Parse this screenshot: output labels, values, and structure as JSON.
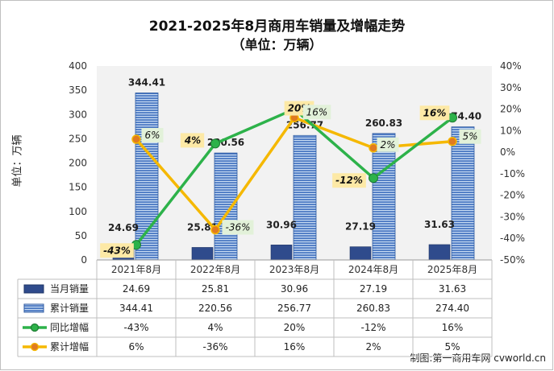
{
  "title": "2021-2025年8月商用车销量及增幅走势",
  "subtitle": "（单位：万辆）",
  "source": "制图:第一商用车网 cvworld.cn",
  "chart_data": {
    "type": "bar",
    "categories": [
      "2021年8月",
      "2022年8月",
      "2023年8月",
      "2024年8月",
      "2025年8月"
    ],
    "ylabel": "单位：万辆",
    "ylim": [
      0,
      400
    ],
    "y2lim": [
      -50,
      40
    ],
    "yticks": [
      "0",
      "50",
      "100",
      "150",
      "200",
      "250",
      "300",
      "350",
      "400"
    ],
    "y2ticks": [
      "-50%",
      "-40%",
      "-30%",
      "-20%",
      "-10%",
      "0%",
      "10%",
      "20%",
      "30%",
      "40%"
    ],
    "series": [
      {
        "name": "当月销量",
        "type": "bar",
        "axis": "left",
        "color": "#2f4b8c",
        "values": [
          24.69,
          25.81,
          30.96,
          27.19,
          31.63
        ],
        "labels": [
          "24.69",
          "25.81",
          "30.96",
          "27.19",
          "31.63"
        ]
      },
      {
        "name": "累计销量",
        "type": "bar",
        "axis": "left",
        "color": "#4a78c2",
        "values": [
          344.41,
          220.56,
          256.77,
          260.83,
          274.4
        ],
        "labels": [
          "344.41",
          "220.56",
          "256.77",
          "260.83",
          "274.40"
        ]
      },
      {
        "name": "同比增幅",
        "type": "line",
        "axis": "right",
        "color": "#2db24a",
        "values": [
          -43,
          4,
          20,
          -12,
          16
        ],
        "labels": [
          "-43%",
          "4%",
          "20%",
          "-12%",
          "16%"
        ]
      },
      {
        "name": "累计增幅",
        "type": "line",
        "axis": "right",
        "color": "#f5b800",
        "values": [
          6,
          -36,
          16,
          2,
          5
        ],
        "labels": [
          "6%",
          "-36%",
          "16%",
          "2%",
          "5%"
        ]
      }
    ]
  }
}
